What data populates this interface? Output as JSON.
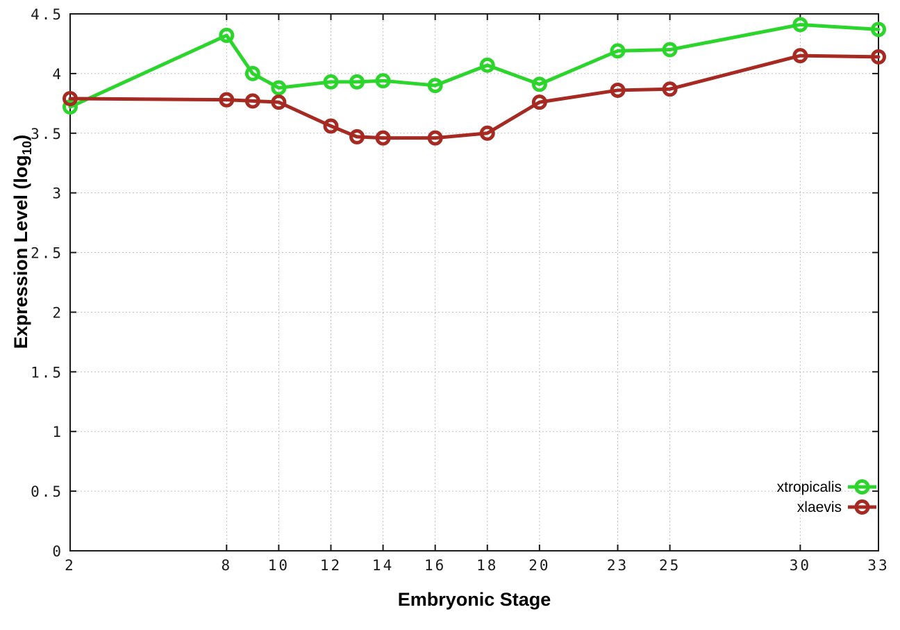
{
  "chart_data": {
    "type": "line",
    "title": "",
    "xlabel": "Embryonic Stage",
    "ylabel": "Expression Level (log10)",
    "ylabel_parts": {
      "prefix": "Expression Level (log",
      "sub": "10",
      "suffix": ")"
    },
    "xlim": [
      2,
      33
    ],
    "ylim": [
      0,
      4.5
    ],
    "grid": true,
    "legend_position": "bottom-right",
    "x_tick_values": [
      2,
      8,
      10,
      12,
      14,
      16,
      18,
      20,
      23,
      25,
      30,
      33
    ],
    "x_tick_labels": [
      "2",
      "8",
      "10",
      "12",
      "14",
      "16",
      "18",
      "20",
      "23",
      "25",
      "30",
      "33"
    ],
    "y_tick_values": [
      0,
      0.5,
      1,
      1.5,
      2,
      2.5,
      3,
      3.5,
      4,
      4.5
    ],
    "y_tick_labels": [
      "0",
      "0.5",
      "1",
      "1.5",
      "2",
      "2.5",
      "3",
      "3.5",
      "4",
      "4.5"
    ],
    "x": [
      2,
      8,
      9,
      10,
      12,
      13,
      14,
      16,
      18,
      20,
      23,
      25,
      30,
      33
    ],
    "series": [
      {
        "name": "xtropicalis",
        "color": "#2cd52c",
        "marker": "open-circle",
        "values": [
          3.72,
          4.32,
          4.0,
          3.88,
          3.93,
          3.93,
          3.94,
          3.9,
          4.07,
          3.91,
          4.19,
          4.2,
          4.41,
          4.37
        ]
      },
      {
        "name": "xlaevis",
        "color": "#a62a22",
        "marker": "open-circle",
        "values": [
          3.79,
          3.78,
          3.77,
          3.76,
          3.56,
          3.47,
          3.46,
          3.46,
          3.5,
          3.76,
          3.86,
          3.87,
          4.15,
          4.14
        ]
      }
    ]
  },
  "colors": {
    "background": "#ffffff",
    "grid": "#bfbfbf",
    "border": "#1a1a1a",
    "text": "#000000"
  }
}
